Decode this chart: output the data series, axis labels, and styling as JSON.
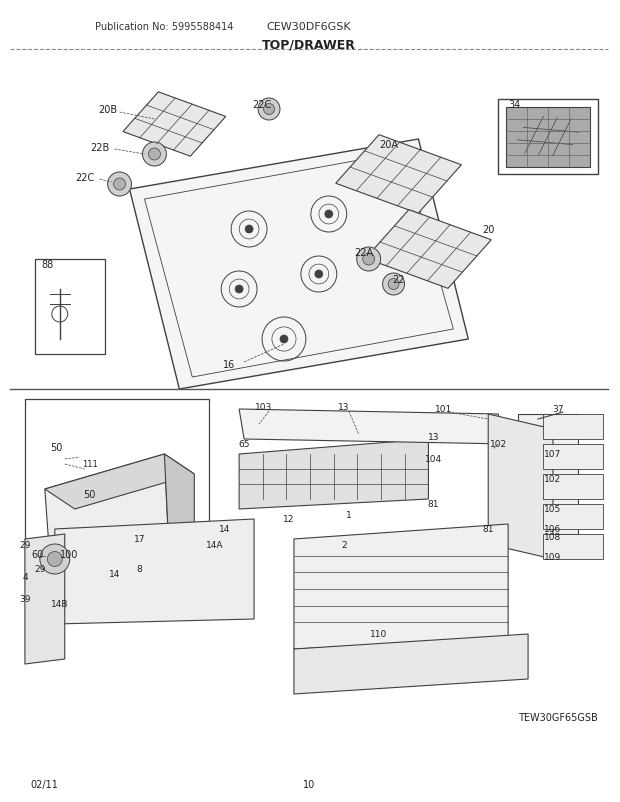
{
  "title": "TOP/DRAWER",
  "pub_no": "Publication No: 5995588414",
  "model": "CEW30DF6GSK",
  "date": "02/11",
  "page": "10",
  "diagram_ref": "TEW30GF65GSB",
  "bg_color": "#ffffff",
  "line_color": "#404040",
  "text_color": "#222222",
  "figsize": [
    6.2,
    8.03
  ],
  "dpi": 100
}
